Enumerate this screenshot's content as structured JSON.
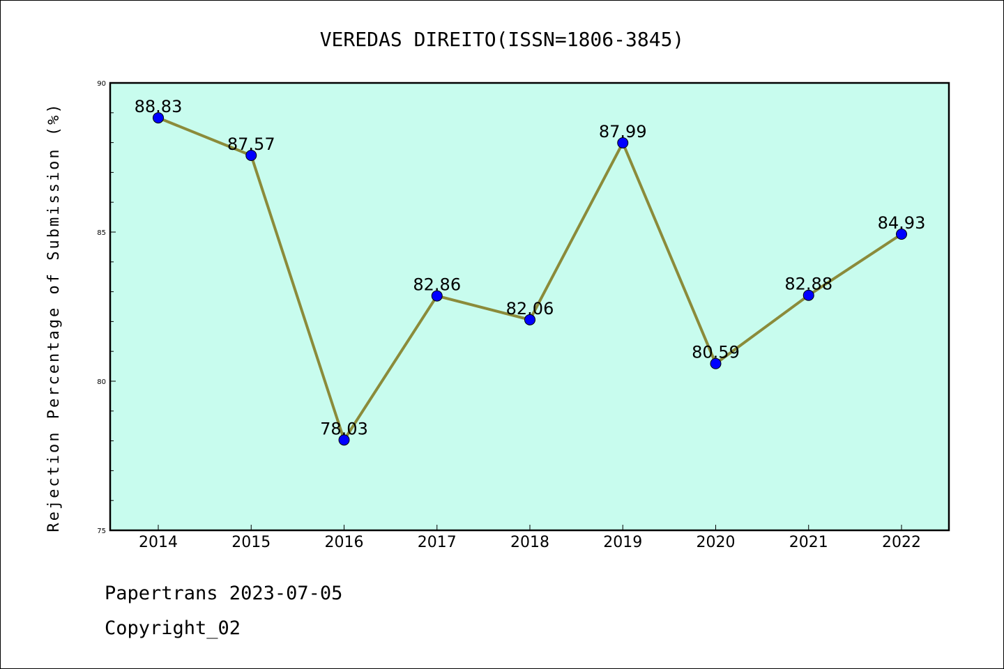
{
  "chart_data": {
    "type": "line",
    "title": "VEREDAS DIREITO(ISSN=1806-3845)",
    "xlabel": "",
    "ylabel": "Rejection Percentage of Submission (%)",
    "categories": [
      "2014",
      "2015",
      "2016",
      "2017",
      "2018",
      "2019",
      "2020",
      "2021",
      "2022"
    ],
    "series": [
      {
        "values": [
          88.83,
          87.57,
          78.03,
          82.86,
          82.06,
          87.99,
          80.59,
          82.88,
          84.93
        ],
        "labels": [
          "88.83",
          "87.57",
          "78.03",
          "82.86",
          "82.06",
          "87.99",
          "80.59",
          "82.88",
          "84.93"
        ],
        "line_color": "#8b8b3a",
        "marker_color": "#0000ff"
      }
    ],
    "ylim": [
      75,
      90
    ],
    "yticks": [
      "75",
      "80",
      "85",
      "90"
    ],
    "grid": false,
    "background": "#c8fcee"
  },
  "footer": {
    "line1": "Papertrans 2023-07-05",
    "line2": "Copyright_02"
  }
}
